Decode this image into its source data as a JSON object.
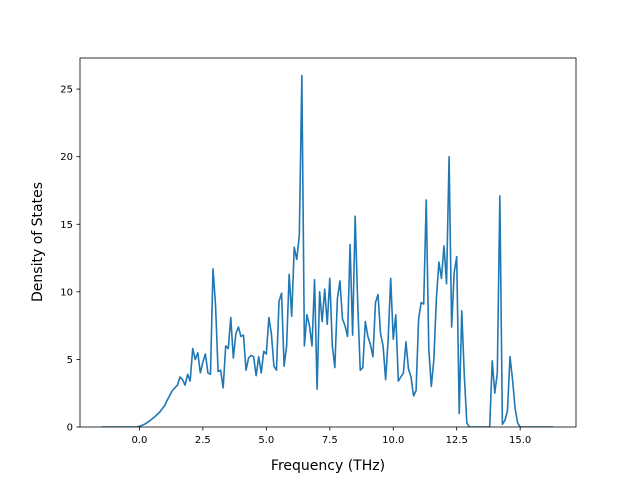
{
  "chart_data": {
    "type": "line",
    "title": "",
    "xlabel": "Frequency (THz)",
    "ylabel": "Density of States",
    "xlim": [
      -2.34,
      17.2
    ],
    "ylim": [
      0,
      27.3
    ],
    "xticks": [
      0.0,
      2.5,
      5.0,
      7.5,
      10.0,
      12.5,
      15.0
    ],
    "xtick_labels": [
      "0.0",
      "2.5",
      "5.0",
      "7.5",
      "10.0",
      "12.5",
      "15.0"
    ],
    "yticks": [
      0,
      5,
      10,
      15,
      20,
      25
    ],
    "ytick_labels": [
      "0",
      "5",
      "10",
      "15",
      "20",
      "25"
    ],
    "grid": false,
    "legend": null,
    "line_color": "#1f77b4",
    "series": [
      {
        "x": [
          -1.5,
          -1.0,
          -0.5,
          -0.1,
          0.0,
          0.2,
          0.4,
          0.6,
          0.8,
          1.0,
          1.1,
          1.3,
          1.5,
          1.6,
          1.7,
          1.8,
          1.9,
          2.0,
          2.1,
          2.2,
          2.3,
          2.4,
          2.5,
          2.6,
          2.7,
          2.8,
          2.9,
          3.0,
          3.1,
          3.2,
          3.3,
          3.4,
          3.5,
          3.6,
          3.7,
          3.8,
          3.9,
          4.0,
          4.1,
          4.2,
          4.3,
          4.4,
          4.5,
          4.6,
          4.7,
          4.8,
          4.9,
          5.0,
          5.1,
          5.2,
          5.3,
          5.4,
          5.5,
          5.6,
          5.7,
          5.8,
          5.9,
          6.0,
          6.1,
          6.2,
          6.3,
          6.4,
          6.5,
          6.6,
          6.7,
          6.8,
          6.9,
          7.0,
          7.1,
          7.2,
          7.3,
          7.4,
          7.5,
          7.6,
          7.7,
          7.8,
          7.9,
          8.0,
          8.1,
          8.2,
          8.3,
          8.4,
          8.5,
          8.6,
          8.7,
          8.8,
          8.9,
          9.0,
          9.1,
          9.2,
          9.3,
          9.4,
          9.5,
          9.6,
          9.7,
          9.8,
          9.9,
          10.0,
          10.1,
          10.2,
          10.3,
          10.4,
          10.5,
          10.6,
          10.7,
          10.8,
          10.9,
          11.0,
          11.1,
          11.2,
          11.3,
          11.4,
          11.5,
          11.6,
          11.7,
          11.8,
          11.9,
          12.0,
          12.1,
          12.2,
          12.3,
          12.4,
          12.5,
          12.6,
          12.7,
          12.8,
          12.9,
          13.0,
          13.3,
          13.6,
          13.8,
          13.9,
          14.0,
          14.1,
          14.2,
          14.3,
          14.4,
          14.5,
          14.6,
          14.7,
          14.8,
          14.9,
          15.0,
          15.2,
          15.5,
          16.0,
          16.3
        ],
        "y": [
          0,
          0,
          0,
          0,
          0.05,
          0.2,
          0.45,
          0.75,
          1.1,
          1.6,
          2.0,
          2.7,
          3.1,
          3.7,
          3.5,
          3.1,
          3.9,
          3.4,
          5.8,
          5.0,
          5.5,
          4.0,
          4.8,
          5.4,
          4.0,
          3.9,
          11.7,
          9.0,
          4.1,
          4.2,
          2.9,
          6.0,
          5.8,
          8.1,
          5.1,
          6.9,
          7.4,
          6.7,
          6.8,
          4.2,
          5.1,
          5.3,
          5.2,
          3.8,
          5.2,
          4.0,
          5.6,
          5.4,
          8.1,
          6.9,
          4.5,
          4.2,
          9.3,
          9.9,
          4.5,
          6.0,
          11.3,
          8.2,
          13.3,
          12.4,
          14.2,
          26.0,
          6.0,
          8.3,
          7.5,
          6.0,
          10.9,
          2.8,
          10.0,
          7.8,
          10.2,
          7.6,
          11.0,
          6.0,
          4.4,
          9.5,
          10.8,
          8.0,
          7.5,
          6.7,
          13.5,
          6.8,
          15.6,
          9.2,
          4.2,
          4.4,
          7.8,
          6.7,
          6.1,
          5.2,
          9.2,
          9.8,
          6.9,
          6.0,
          3.5,
          6.5,
          11.0,
          6.5,
          8.3,
          3.4,
          3.7,
          4.0,
          6.3,
          4.3,
          3.7,
          2.3,
          2.7,
          8.0,
          9.2,
          9.1,
          16.8,
          5.8,
          3.0,
          5.0,
          9.5,
          12.2,
          11.0,
          13.4,
          10.6,
          20.0,
          7.4,
          11.4,
          12.6,
          1.0,
          8.6,
          3.8,
          0.3,
          0,
          0,
          0,
          0,
          4.9,
          2.5,
          4.0,
          17.1,
          0.2,
          0.5,
          1.2,
          5.2,
          3.5,
          1.4,
          0.3,
          0,
          0,
          0,
          0,
          0
        ]
      }
    ]
  }
}
